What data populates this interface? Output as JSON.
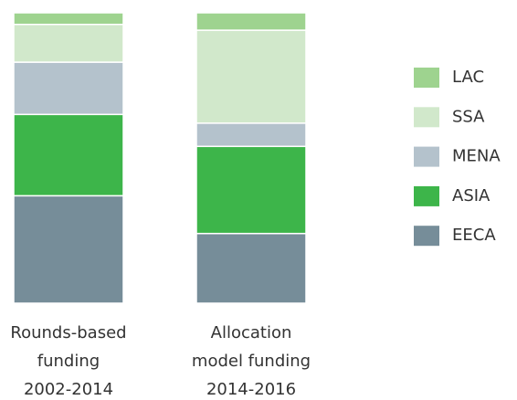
{
  "chart_data": {
    "type": "stacked-bar",
    "categories": [
      [
        "Rounds-based",
        "funding",
        "2002-2014"
      ],
      [
        "Allocation",
        "model funding",
        "2014-2016"
      ]
    ],
    "series": [
      {
        "name": "EECA",
        "color": "#768d99",
        "values": [
          37,
          24
        ]
      },
      {
        "name": "ASIA",
        "color": "#3db54a",
        "values": [
          28,
          30
        ]
      },
      {
        "name": "MENA",
        "color": "#b4c2cc",
        "values": [
          18,
          8
        ]
      },
      {
        "name": "SSA",
        "color": "#d1e8cb",
        "values": [
          13,
          32
        ]
      },
      {
        "name": "LAC",
        "color": "#9ed38f",
        "values": [
          4,
          6
        ]
      }
    ],
    "legend": "right"
  }
}
